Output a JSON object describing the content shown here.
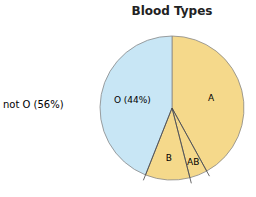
{
  "chart_data": {
    "type": "pie",
    "title": "Blood Types",
    "categories": [
      "A",
      "AB",
      "B",
      "O (44%)"
    ],
    "values": [
      42,
      4,
      10,
      44
    ],
    "colors": [
      "#F5D98B",
      "#F5D98B",
      "#F5D98B",
      "#C8E6F5"
    ],
    "annotations": [
      "not O (56%)"
    ]
  }
}
